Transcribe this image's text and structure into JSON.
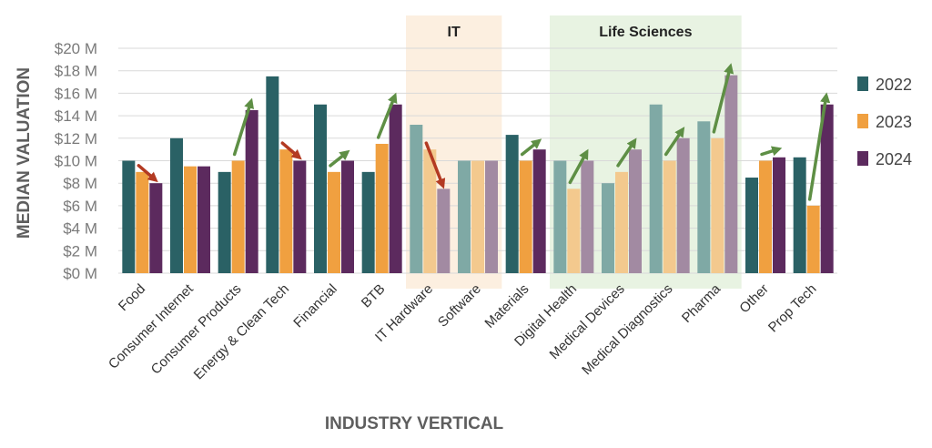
{
  "chart_data": {
    "type": "bar",
    "title": "",
    "xlabel": "INDUSTRY VERTICAL",
    "ylabel": "MEDIAN VALUATION",
    "ylim": [
      0,
      20
    ],
    "y_ticks": [
      "$0 M",
      "$2 M",
      "$4 M",
      "$6 M",
      "$8 M",
      "$10 M",
      "$12 M",
      "$14 M",
      "$16 M",
      "$18 M",
      "$20 M"
    ],
    "categories": [
      "Food",
      "Consumer Internet",
      "Consumer Products",
      "Energy & Clean Tech",
      "Financial",
      "BTB",
      "IT Hardware",
      "Software",
      "Materials",
      "Digital Health",
      "Medical Devices",
      "Medical Diagnostics",
      "Pharma",
      "Other",
      "Prop Tech"
    ],
    "series": [
      {
        "name": "2022",
        "color": "#2a6165",
        "faded_color": "#7fa9a5",
        "values": [
          10,
          12,
          9,
          17.5,
          15,
          9,
          13.2,
          10,
          12.3,
          10,
          8,
          15,
          13.5,
          8.5,
          10.3
        ]
      },
      {
        "name": "2023",
        "color": "#f0a040",
        "faded_color": "#f3c98e",
        "values": [
          9,
          9.5,
          10,
          11,
          9,
          11.5,
          11,
          10,
          10,
          7.5,
          9,
          10,
          12,
          10,
          6
        ]
      },
      {
        "name": "2024",
        "color": "#5c2a5e",
        "faded_color": "#a28aa2",
        "values": [
          8,
          9.5,
          14.5,
          10,
          10,
          15,
          7.5,
          10,
          11,
          10,
          11,
          12,
          17.6,
          10.3,
          15
        ]
      }
    ],
    "bands": [
      {
        "label": "IT",
        "categories": [
          "IT Hardware",
          "Software"
        ],
        "color": "#fcefe0"
      },
      {
        "label": "Life Sciences",
        "categories": [
          "Digital Health",
          "Medical Devices",
          "Medical Diagnostics",
          "Pharma"
        ],
        "color": "#e8f3e2"
      }
    ],
    "trend_arrows": [
      {
        "category": "Food",
        "from": 9,
        "to": 8,
        "direction": "down"
      },
      {
        "category": "Consumer Products",
        "from": 10,
        "to": 14.5,
        "direction": "up"
      },
      {
        "category": "Energy & Clean Tech",
        "from": 11,
        "to": 10,
        "direction": "down"
      },
      {
        "category": "Financial",
        "from": 9,
        "to": 10,
        "direction": "up"
      },
      {
        "category": "BTB",
        "from": 11.5,
        "to": 15,
        "direction": "up"
      },
      {
        "category": "IT Hardware",
        "from": 11,
        "to": 7.5,
        "direction": "down"
      },
      {
        "category": "Materials",
        "from": 10,
        "to": 11,
        "direction": "up"
      },
      {
        "category": "Digital Health",
        "from": 7.5,
        "to": 10,
        "direction": "up"
      },
      {
        "category": "Medical Devices",
        "from": 9,
        "to": 11,
        "direction": "up"
      },
      {
        "category": "Medical Diagnostics",
        "from": 10,
        "to": 12,
        "direction": "up"
      },
      {
        "category": "Pharma",
        "from": 12,
        "to": 17.6,
        "direction": "up"
      },
      {
        "category": "Other",
        "from": 10,
        "to": 10.3,
        "direction": "up"
      },
      {
        "category": "Prop Tech",
        "from": 6,
        "to": 15,
        "direction": "up"
      }
    ],
    "arrow_colors": {
      "up": "#5e8f45",
      "down": "#b33a22"
    },
    "legend": [
      "2022",
      "2023",
      "2024"
    ],
    "legend_position": "right",
    "grid": true
  }
}
